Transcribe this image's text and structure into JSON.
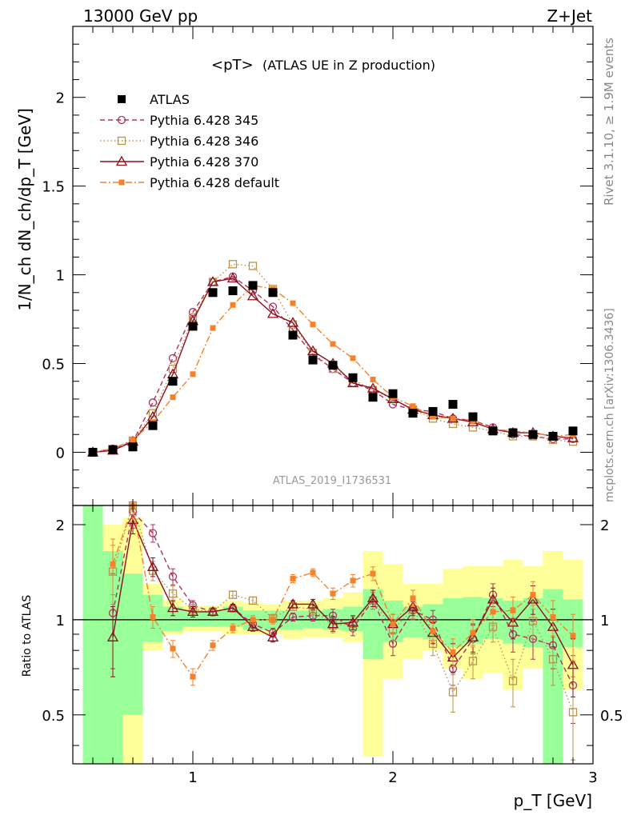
{
  "header": {
    "energy_label": "13000 GeV pp",
    "process_label": "Z+Jet",
    "plot_title_main": "<pT>",
    "plot_title_sub": "(ATLAS UE in Z production)",
    "analysis_id": "ATLAS_2019_I1736531",
    "side_rivet": "Rivet 3.1.10, ≥ 1.9M events",
    "side_mcplots": "mcplots.cern.ch [arXiv:1306.3436]"
  },
  "chart_data": {
    "type": "line",
    "title": "<pT> (ATLAS UE in Z production)",
    "xlabel": "p_T [GeV]",
    "ylabel": "1/N_ch dN_ch/dp_T [GeV]",
    "ratio_ylabel": "Ratio to ATLAS",
    "xlim": [
      0.4,
      3.0
    ],
    "ylim": [
      -0.3,
      2.4
    ],
    "ratio_ylim": [
      0.35,
      2.3
    ],
    "x_ticks": [
      "1",
      "2",
      "3"
    ],
    "y_ticks": [
      "0",
      "0.5",
      "1",
      "1.5",
      "2"
    ],
    "ratio_ticks": [
      "0.5",
      "1",
      "2"
    ],
    "x": [
      0.5,
      0.6,
      0.7,
      0.8,
      0.9,
      1.0,
      1.1,
      1.2,
      1.3,
      1.4,
      1.5,
      1.6,
      1.7,
      1.8,
      1.9,
      2.0,
      2.1,
      2.2,
      2.3,
      2.4,
      2.5,
      2.6,
      2.7,
      2.8,
      2.9
    ],
    "data_series": {
      "name": "ATLAS",
      "values": [
        0.0,
        0.015,
        0.03,
        0.15,
        0.4,
        0.71,
        0.9,
        0.91,
        0.94,
        0.9,
        0.66,
        0.52,
        0.49,
        0.42,
        0.31,
        0.33,
        0.22,
        0.23,
        0.27,
        0.2,
        0.12,
        0.11,
        0.1,
        0.09,
        0.12
      ]
    },
    "ratio_band_inner": [
      [
        0.3,
        3.0
      ],
      [
        0.35,
        1.65
      ],
      [
        0.5,
        1.4
      ],
      [
        0.85,
        1.2
      ],
      [
        0.92,
        1.1
      ],
      [
        0.95,
        1.07
      ],
      [
        0.95,
        1.07
      ],
      [
        0.95,
        1.1
      ],
      [
        0.93,
        1.07
      ],
      [
        0.93,
        1.07
      ],
      [
        0.93,
        1.07
      ],
      [
        0.94,
        1.07
      ],
      [
        0.93,
        1.08
      ],
      [
        0.92,
        1.1
      ],
      [
        0.75,
        1.25
      ],
      [
        0.85,
        1.15
      ],
      [
        0.88,
        1.1
      ],
      [
        0.87,
        1.12
      ],
      [
        0.82,
        1.17
      ],
      [
        0.84,
        1.18
      ],
      [
        0.87,
        1.17
      ],
      [
        0.84,
        1.15
      ],
      [
        0.82,
        1.17
      ],
      [
        0.35,
        1.25
      ],
      [
        0.82,
        1.16
      ]
    ],
    "ratio_band_outer": [
      [
        0.3,
        3.0
      ],
      [
        0.35,
        2.0
      ],
      [
        0.35,
        2.1
      ],
      [
        0.8,
        1.3
      ],
      [
        0.9,
        1.16
      ],
      [
        0.92,
        1.11
      ],
      [
        0.92,
        1.11
      ],
      [
        0.9,
        1.15
      ],
      [
        0.9,
        1.13
      ],
      [
        0.9,
        1.12
      ],
      [
        0.87,
        1.15
      ],
      [
        0.88,
        1.15
      ],
      [
        0.88,
        1.17
      ],
      [
        0.85,
        1.22
      ],
      [
        0.37,
        1.65
      ],
      [
        0.65,
        1.5
      ],
      [
        0.75,
        1.3
      ],
      [
        0.8,
        1.3
      ],
      [
        0.7,
        1.45
      ],
      [
        0.65,
        1.48
      ],
      [
        0.68,
        1.48
      ],
      [
        0.6,
        1.55
      ],
      [
        0.7,
        1.48
      ],
      [
        0.35,
        1.65
      ],
      [
        0.6,
        1.55
      ]
    ],
    "series": [
      {
        "name": "Pythia 6.428 345",
        "color": "#b03060",
        "marker": "circle",
        "dash": "6,4",
        "values": [
          0.0,
          0.02,
          0.06,
          0.28,
          0.53,
          0.79,
          0.96,
          0.99,
          0.91,
          0.82,
          0.69,
          0.55,
          0.47,
          0.39,
          0.35,
          0.27,
          0.24,
          0.23,
          0.19,
          0.18,
          0.14,
          0.1,
          0.09,
          0.075,
          0.075
        ],
        "ratio": [
          null,
          1.05,
          2.2,
          1.88,
          1.37,
          1.11,
          1.06,
          1.09,
          0.97,
          0.91,
          1.02,
          1.03,
          1.03,
          0.94,
          1.15,
          0.84,
          1.07,
          1.0,
          0.7,
          0.87,
          1.2,
          0.9,
          0.87,
          0.83,
          0.62
        ],
        "ratio_err": [
          null,
          0.35,
          0.25,
          0.12,
          0.08,
          0.04,
          0.03,
          0.03,
          0.03,
          0.03,
          0.03,
          0.04,
          0.05,
          0.05,
          0.07,
          0.07,
          0.07,
          0.07,
          0.08,
          0.09,
          0.1,
          0.11,
          0.12,
          0.13,
          0.15
        ]
      },
      {
        "name": "Pythia 6.428 346",
        "color": "#b8934a",
        "marker": "square",
        "dash": "1.5,3",
        "values": [
          0.0,
          0.015,
          0.065,
          0.22,
          0.47,
          0.76,
          0.96,
          1.06,
          1.05,
          0.92,
          0.72,
          0.56,
          0.47,
          0.41,
          0.35,
          0.3,
          0.24,
          0.19,
          0.16,
          0.14,
          0.12,
          0.09,
          0.09,
          0.07,
          0.06
        ],
        "ratio": [
          null,
          1.42,
          2.3,
          1.43,
          1.21,
          1.08,
          1.06,
          1.2,
          1.15,
          1.01,
          1.1,
          1.08,
          0.96,
          0.97,
          1.15,
          0.93,
          1.08,
          0.84,
          0.59,
          0.74,
          0.95,
          0.64,
          0.99,
          0.75,
          0.51
        ],
        "ratio_err": [
          null,
          0.3,
          0.25,
          0.1,
          0.07,
          0.04,
          0.03,
          0.03,
          0.03,
          0.03,
          0.03,
          0.04,
          0.05,
          0.05,
          0.07,
          0.07,
          0.07,
          0.07,
          0.08,
          0.09,
          0.1,
          0.11,
          0.12,
          0.13,
          0.15
        ]
      },
      {
        "name": "Pythia 6.428 370",
        "color": "#8b0f1f",
        "marker": "triangle",
        "dash": "",
        "values": [
          0.0,
          0.01,
          0.06,
          0.2,
          0.44,
          0.74,
          0.96,
          0.98,
          0.88,
          0.78,
          0.73,
          0.57,
          0.5,
          0.39,
          0.36,
          0.3,
          0.24,
          0.21,
          0.19,
          0.17,
          0.13,
          0.11,
          0.11,
          0.09,
          0.08
        ],
        "ratio": [
          null,
          0.88,
          2.07,
          1.47,
          1.09,
          1.06,
          1.06,
          1.09,
          0.95,
          0.88,
          1.12,
          1.12,
          0.97,
          0.98,
          1.17,
          0.97,
          1.1,
          0.91,
          0.76,
          0.88,
          1.16,
          0.98,
          1.16,
          0.95,
          0.72
        ],
        "ratio_err": [
          null,
          0.22,
          0.2,
          0.1,
          0.06,
          0.04,
          0.03,
          0.03,
          0.03,
          0.03,
          0.03,
          0.04,
          0.05,
          0.05,
          0.07,
          0.07,
          0.07,
          0.07,
          0.08,
          0.09,
          0.1,
          0.11,
          0.12,
          0.13,
          0.15
        ]
      },
      {
        "name": "Pythia 6.428 default",
        "color": "#f5812a",
        "marker": "filled-square-small",
        "dash": "8,3,2,3",
        "values": [
          0.0,
          0.02,
          0.07,
          0.17,
          0.31,
          0.44,
          0.7,
          0.83,
          0.94,
          0.92,
          0.84,
          0.72,
          0.61,
          0.53,
          0.41,
          0.31,
          0.26,
          0.2,
          0.19,
          0.18,
          0.13,
          0.12,
          0.11,
          0.09,
          0.1
        ],
        "ratio": [
          null,
          1.5,
          2.3,
          1.02,
          0.81,
          0.66,
          0.83,
          0.94,
          1.0,
          1.0,
          1.35,
          1.41,
          1.21,
          1.33,
          1.4,
          0.97,
          1.17,
          0.92,
          0.79,
          0.91,
          1.06,
          1.07,
          1.2,
          1.02,
          0.89
        ],
        "ratio_err": [
          null,
          0.3,
          0.2,
          0.08,
          0.05,
          0.04,
          0.03,
          0.03,
          0.03,
          0.03,
          0.04,
          0.04,
          0.05,
          0.06,
          0.07,
          0.07,
          0.07,
          0.07,
          0.08,
          0.09,
          0.1,
          0.11,
          0.12,
          0.13,
          0.15
        ]
      }
    ]
  }
}
